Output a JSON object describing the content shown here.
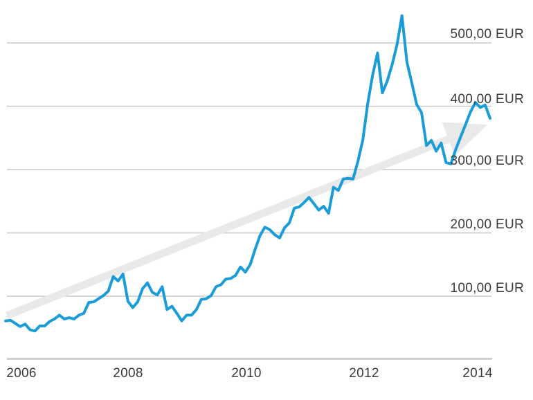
{
  "chart_data": {
    "type": "line",
    "title": "",
    "currency": "EUR",
    "grid": "horizontal",
    "background_color": "#ffffff",
    "gridline_color": "#c9c9c9",
    "baseline_color": "#c5c5c5",
    "label_color": "#3a3a3a",
    "y_axis": {
      "baseline_value": 0,
      "ticks": [
        {
          "value": 500,
          "label": "500,00 EUR"
        },
        {
          "value": 400,
          "label": "400,00 EUR"
        },
        {
          "value": 300,
          "label": "300,00 EUR"
        },
        {
          "value": 200,
          "label": "200,00 EUR"
        },
        {
          "value": 100,
          "label": "100,00 EUR"
        }
      ]
    },
    "x_axis": {
      "ticks": [
        {
          "year": 2006,
          "label": "2006"
        },
        {
          "year": 2008,
          "label": "2008"
        },
        {
          "year": 2010,
          "label": "2010"
        },
        {
          "year": 2012,
          "label": "2012"
        },
        {
          "year": 2014,
          "label": "2014"
        }
      ]
    },
    "series": [
      {
        "name": "share-price-eur",
        "color": "#199cd8",
        "start": "2005-12",
        "interval": "monthly",
        "values": [
          61,
          62,
          57,
          52,
          56,
          47,
          45,
          53,
          53,
          60,
          64,
          70,
          64,
          66,
          64,
          70,
          73,
          90,
          91,
          96,
          101,
          108,
          131,
          124,
          135,
          92,
          82,
          91,
          112,
          121,
          106,
          102,
          115,
          79,
          84,
          73,
          61,
          70,
          70,
          79,
          95,
          96,
          101,
          115,
          118,
          127,
          128,
          133,
          146,
          138,
          150,
          174,
          196,
          209,
          205,
          197,
          192,
          208,
          216,
          239,
          241,
          248,
          256,
          246,
          236,
          242,
          231,
          272,
          267,
          285,
          286,
          285,
          313,
          347,
          404,
          449,
          484,
          421,
          440,
          466,
          498,
          543,
          470,
          437,
          403,
          390,
          338,
          346,
          329,
          342,
          311,
          309,
          332,
          352,
          371,
          391,
          406,
          398,
          402,
          381
        ]
      }
    ],
    "annotations": [
      {
        "type": "trend-arrow",
        "direction": "up-right",
        "color": "#e9e9e9"
      }
    ]
  }
}
